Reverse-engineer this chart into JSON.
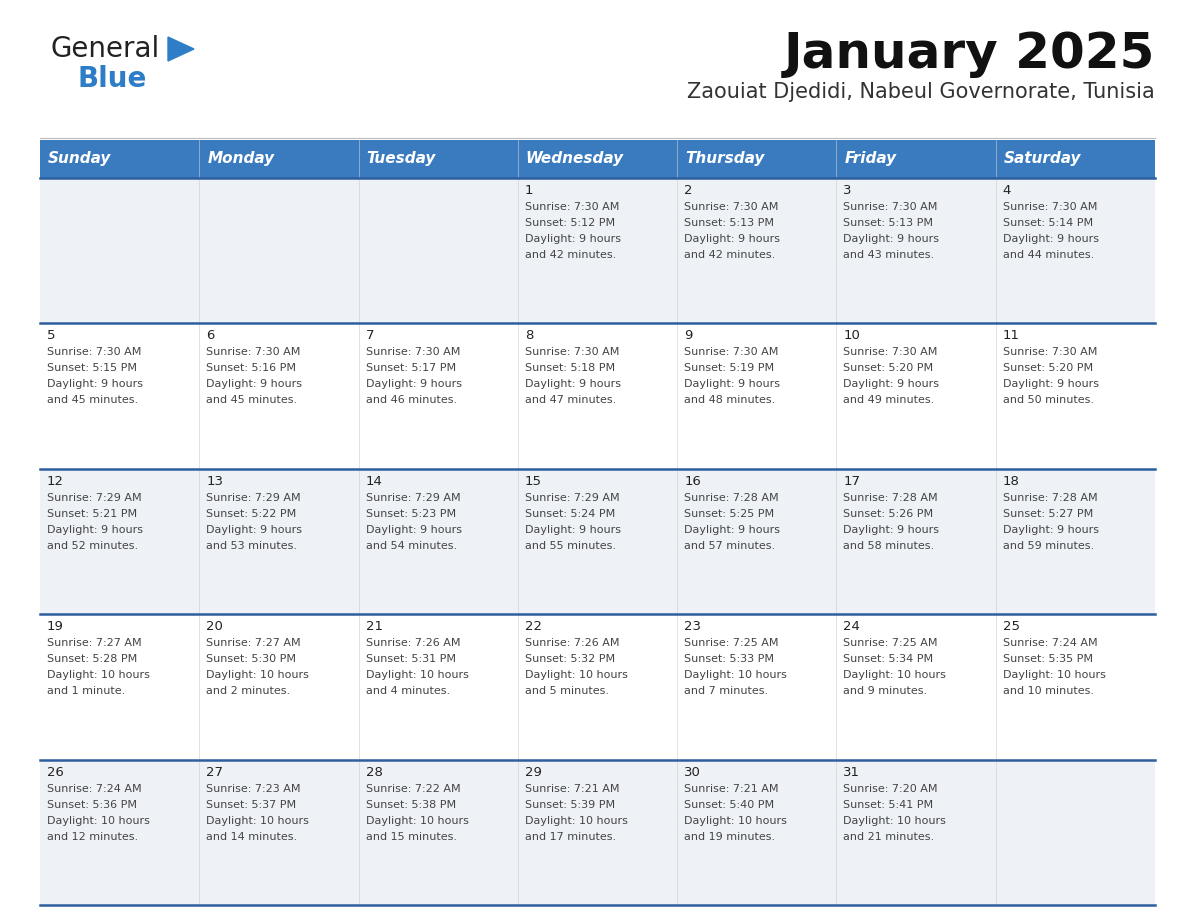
{
  "title": "January 2025",
  "subtitle": "Zaouiat Djedidi, Nabeul Governorate, Tunisia",
  "header_bg_color": "#3a7bbf",
  "header_text_color": "#ffffff",
  "row_line_color": "#2d5f9e",
  "day_headers": [
    "Sunday",
    "Monday",
    "Tuesday",
    "Wednesday",
    "Thursday",
    "Friday",
    "Saturday"
  ],
  "calendar_data": [
    [
      "",
      "",
      "",
      "1\nSunrise: 7:30 AM\nSunset: 5:12 PM\nDaylight: 9 hours\nand 42 minutes.",
      "2\nSunrise: 7:30 AM\nSunset: 5:13 PM\nDaylight: 9 hours\nand 42 minutes.",
      "3\nSunrise: 7:30 AM\nSunset: 5:13 PM\nDaylight: 9 hours\nand 43 minutes.",
      "4\nSunrise: 7:30 AM\nSunset: 5:14 PM\nDaylight: 9 hours\nand 44 minutes."
    ],
    [
      "5\nSunrise: 7:30 AM\nSunset: 5:15 PM\nDaylight: 9 hours\nand 45 minutes.",
      "6\nSunrise: 7:30 AM\nSunset: 5:16 PM\nDaylight: 9 hours\nand 45 minutes.",
      "7\nSunrise: 7:30 AM\nSunset: 5:17 PM\nDaylight: 9 hours\nand 46 minutes.",
      "8\nSunrise: 7:30 AM\nSunset: 5:18 PM\nDaylight: 9 hours\nand 47 minutes.",
      "9\nSunrise: 7:30 AM\nSunset: 5:19 PM\nDaylight: 9 hours\nand 48 minutes.",
      "10\nSunrise: 7:30 AM\nSunset: 5:20 PM\nDaylight: 9 hours\nand 49 minutes.",
      "11\nSunrise: 7:30 AM\nSunset: 5:20 PM\nDaylight: 9 hours\nand 50 minutes."
    ],
    [
      "12\nSunrise: 7:29 AM\nSunset: 5:21 PM\nDaylight: 9 hours\nand 52 minutes.",
      "13\nSunrise: 7:29 AM\nSunset: 5:22 PM\nDaylight: 9 hours\nand 53 minutes.",
      "14\nSunrise: 7:29 AM\nSunset: 5:23 PM\nDaylight: 9 hours\nand 54 minutes.",
      "15\nSunrise: 7:29 AM\nSunset: 5:24 PM\nDaylight: 9 hours\nand 55 minutes.",
      "16\nSunrise: 7:28 AM\nSunset: 5:25 PM\nDaylight: 9 hours\nand 57 minutes.",
      "17\nSunrise: 7:28 AM\nSunset: 5:26 PM\nDaylight: 9 hours\nand 58 minutes.",
      "18\nSunrise: 7:28 AM\nSunset: 5:27 PM\nDaylight: 9 hours\nand 59 minutes."
    ],
    [
      "19\nSunrise: 7:27 AM\nSunset: 5:28 PM\nDaylight: 10 hours\nand 1 minute.",
      "20\nSunrise: 7:27 AM\nSunset: 5:30 PM\nDaylight: 10 hours\nand 2 minutes.",
      "21\nSunrise: 7:26 AM\nSunset: 5:31 PM\nDaylight: 10 hours\nand 4 minutes.",
      "22\nSunrise: 7:26 AM\nSunset: 5:32 PM\nDaylight: 10 hours\nand 5 minutes.",
      "23\nSunrise: 7:25 AM\nSunset: 5:33 PM\nDaylight: 10 hours\nand 7 minutes.",
      "24\nSunrise: 7:25 AM\nSunset: 5:34 PM\nDaylight: 10 hours\nand 9 minutes.",
      "25\nSunrise: 7:24 AM\nSunset: 5:35 PM\nDaylight: 10 hours\nand 10 minutes."
    ],
    [
      "26\nSunrise: 7:24 AM\nSunset: 5:36 PM\nDaylight: 10 hours\nand 12 minutes.",
      "27\nSunrise: 7:23 AM\nSunset: 5:37 PM\nDaylight: 10 hours\nand 14 minutes.",
      "28\nSunrise: 7:22 AM\nSunset: 5:38 PM\nDaylight: 10 hours\nand 15 minutes.",
      "29\nSunrise: 7:21 AM\nSunset: 5:39 PM\nDaylight: 10 hours\nand 17 minutes.",
      "30\nSunrise: 7:21 AM\nSunset: 5:40 PM\nDaylight: 10 hours\nand 19 minutes.",
      "31\nSunrise: 7:20 AM\nSunset: 5:41 PM\nDaylight: 10 hours\nand 21 minutes.",
      ""
    ]
  ],
  "logo_color_general": "#222222",
  "logo_color_blue": "#2e7ec7",
  "logo_triangle_color": "#2e7ec7",
  "title_fontsize": 36,
  "subtitle_fontsize": 15,
  "header_fontsize": 11,
  "cell_day_fontsize": 9.5,
  "cell_info_fontsize": 8,
  "cell_bg_odd": "#eef2f7",
  "cell_bg_even": "#ffffff"
}
